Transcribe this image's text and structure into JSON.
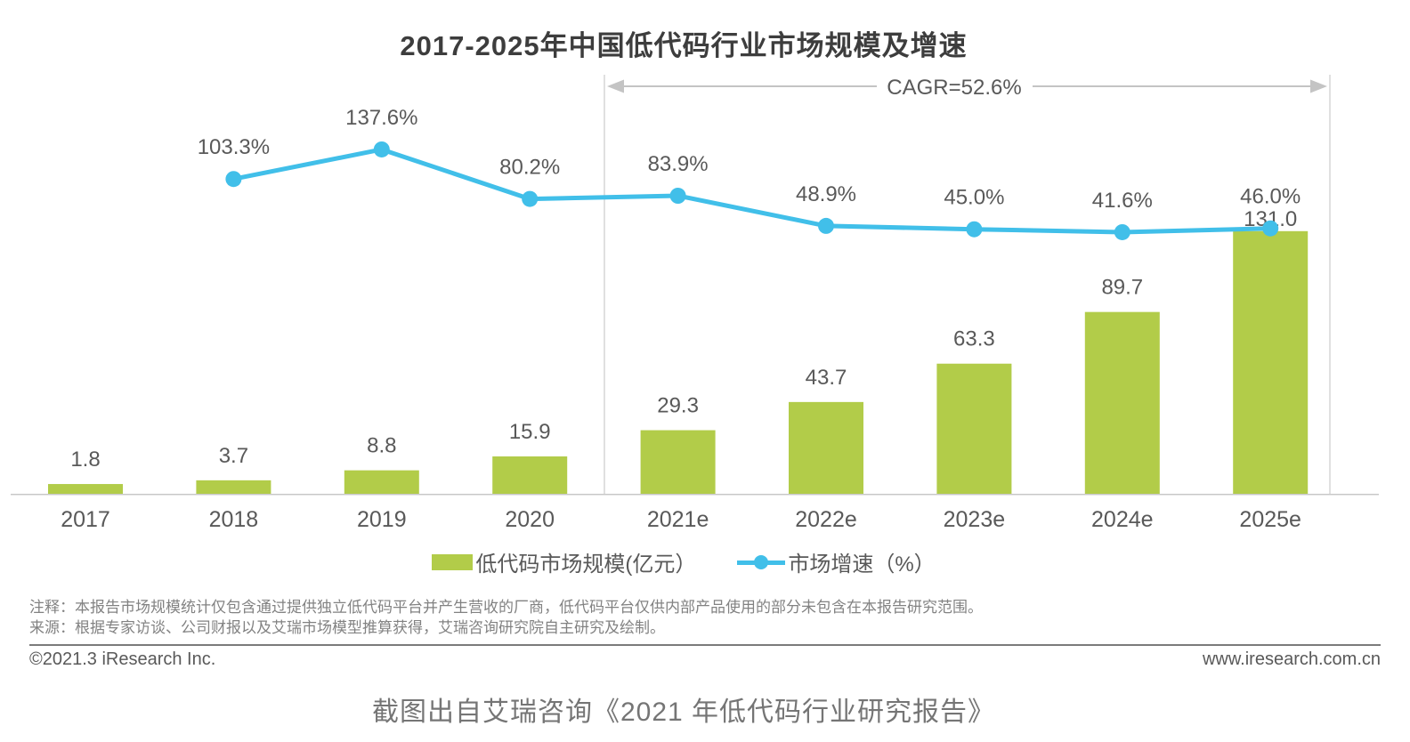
{
  "title": "2017-2025年中国低代码行业市场规模及增速",
  "chart_data": {
    "type": "bar+line",
    "categories": [
      "2017",
      "2018",
      "2019",
      "2020",
      "2021e",
      "2022e",
      "2023e",
      "2024e",
      "2025e"
    ],
    "series": [
      {
        "name": "低代码市场规模(亿元）",
        "type": "bar",
        "values": [
          1.8,
          3.7,
          8.8,
          15.9,
          29.3,
          43.7,
          63.3,
          89.7,
          131.0
        ],
        "color": "#b2cc49",
        "unit": "亿元"
      },
      {
        "name": "市场增速（%）",
        "type": "line",
        "values": [
          null,
          103.3,
          137.6,
          80.2,
          83.9,
          48.9,
          45.0,
          41.6,
          46.0
        ],
        "color": "#41bfe9",
        "unit": "%"
      }
    ],
    "annotation": {
      "label": "CAGR=52.6%",
      "span": [
        "2021e",
        "2025e"
      ]
    },
    "axis_labels_color": "#595959",
    "grid": "off",
    "legend_position": "bottom"
  },
  "notes": [
    "注释：本报告市场规模统计仅包含通过提供独立低代码平台并产生营收的厂商，低代码平台仅供内部产品使用的部分未包含在本报告研究范围。",
    "来源：根据专家访谈、公司财报以及艾瑞市场模型推算获得，艾瑞咨询研究院自主研究及绘制。"
  ],
  "footer": {
    "copyright": "©2021.3 iResearch Inc.",
    "website": "www.iresearch.com.cn"
  },
  "caption": "截图出自艾瑞咨询《2021 年低代码行业研究报告》"
}
